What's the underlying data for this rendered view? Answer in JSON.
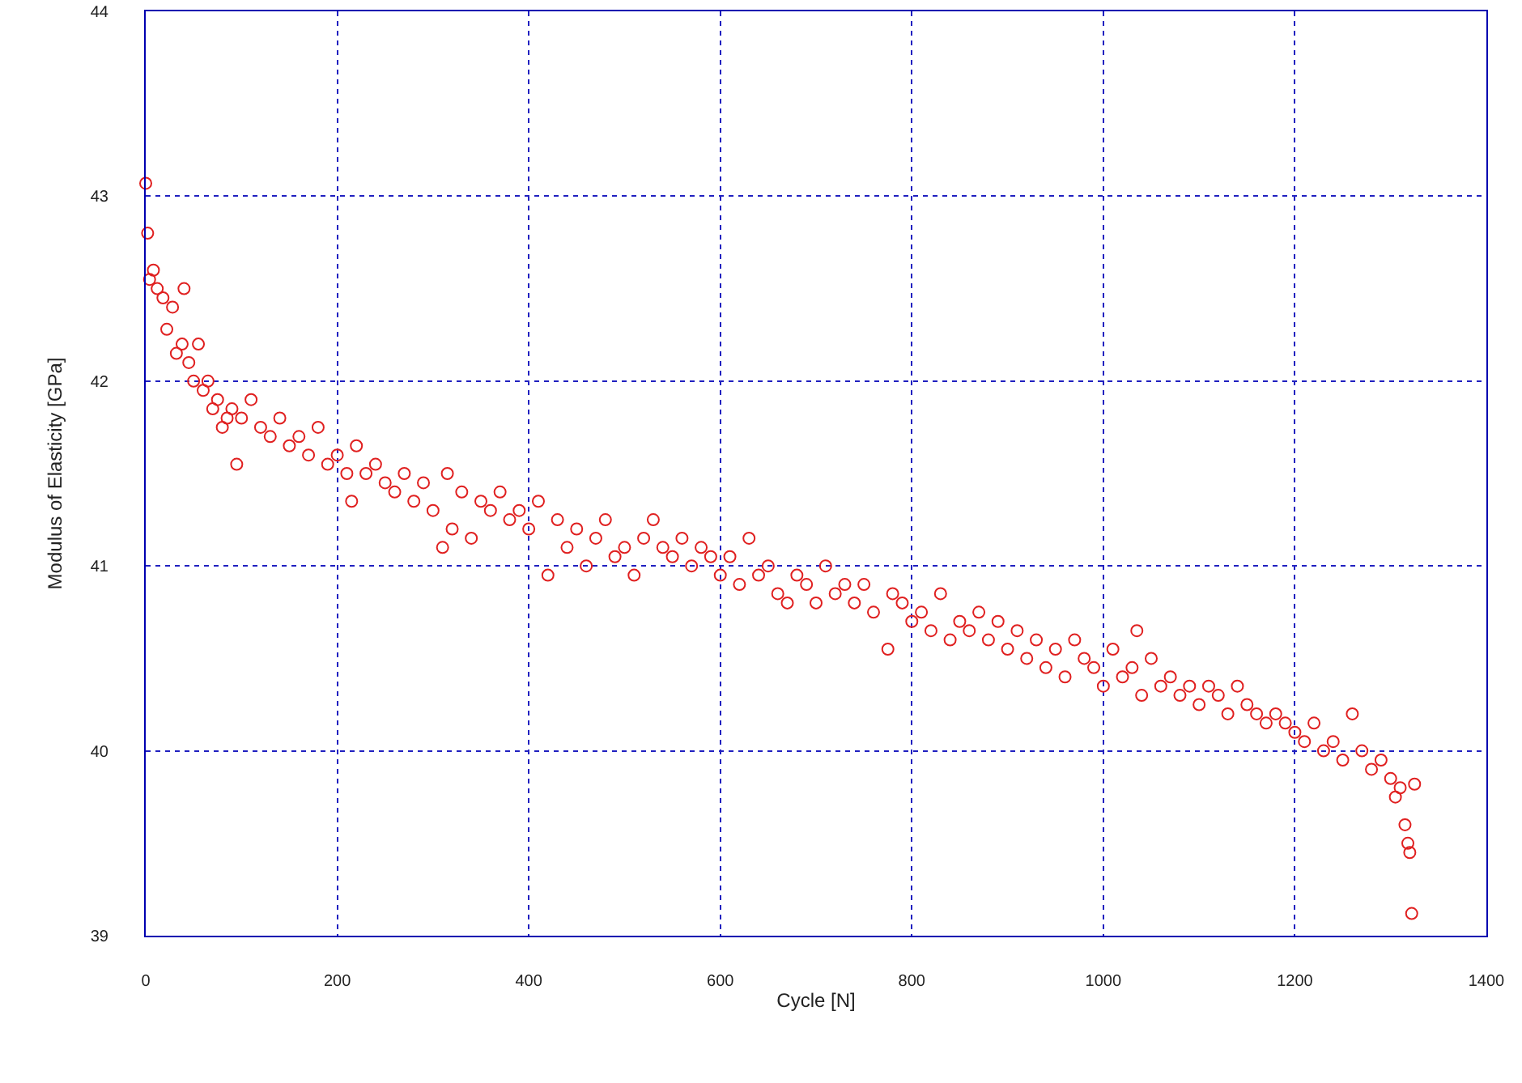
{
  "chart_data": {
    "type": "scatter",
    "xlabel": "Cycle [N]",
    "ylabel": "Modulus of Elasticity [GPa]",
    "xlim": [
      0,
      1400
    ],
    "xticks": [
      0,
      200,
      400,
      600,
      800,
      1000,
      1200,
      1400
    ],
    "ylim": [
      39,
      44
    ],
    "yticks": [
      39,
      40,
      41,
      42,
      43,
      44
    ],
    "grid": true,
    "marker": "circle",
    "series": [
      {
        "color": "#e02020",
        "x": [
          0,
          2,
          4,
          8,
          12,
          18,
          22,
          28,
          32,
          38,
          40,
          45,
          50,
          55,
          60,
          65,
          70,
          75,
          80,
          85,
          90,
          95,
          100,
          110,
          120,
          130,
          140,
          150,
          160,
          170,
          180,
          190,
          200,
          210,
          215,
          220,
          230,
          240,
          250,
          260,
          270,
          280,
          290,
          300,
          310,
          315,
          320,
          330,
          340,
          350,
          360,
          370,
          380,
          390,
          400,
          410,
          420,
          430,
          440,
          450,
          460,
          470,
          480,
          490,
          500,
          510,
          520,
          530,
          540,
          550,
          560,
          570,
          580,
          590,
          600,
          610,
          620,
          630,
          640,
          650,
          660,
          670,
          680,
          690,
          700,
          710,
          720,
          730,
          740,
          750,
          760,
          775,
          780,
          790,
          800,
          810,
          820,
          830,
          840,
          850,
          860,
          870,
          880,
          890,
          900,
          910,
          920,
          930,
          940,
          950,
          960,
          970,
          980,
          990,
          1000,
          1010,
          1020,
          1030,
          1035,
          1040,
          1050,
          1060,
          1070,
          1080,
          1090,
          1100,
          1110,
          1120,
          1130,
          1140,
          1150,
          1160,
          1170,
          1180,
          1190,
          1200,
          1210,
          1220,
          1230,
          1240,
          1250,
          1260,
          1270,
          1280,
          1290,
          1300,
          1305,
          1310,
          1315,
          1318,
          1320,
          1322,
          1325
        ],
        "values": [
          43.07,
          42.8,
          42.55,
          42.6,
          42.5,
          42.45,
          42.28,
          42.4,
          42.15,
          42.2,
          42.5,
          42.1,
          42.0,
          42.2,
          41.95,
          42.0,
          41.85,
          41.9,
          41.75,
          41.8,
          41.85,
          41.55,
          41.8,
          41.9,
          41.75,
          41.7,
          41.8,
          41.65,
          41.7,
          41.6,
          41.75,
          41.55,
          41.6,
          41.5,
          41.35,
          41.65,
          41.5,
          41.55,
          41.45,
          41.4,
          41.5,
          41.35,
          41.45,
          41.3,
          41.1,
          41.5,
          41.2,
          41.4,
          41.15,
          41.35,
          41.3,
          41.4,
          41.25,
          41.3,
          41.2,
          41.35,
          40.95,
          41.25,
          41.1,
          41.2,
          41.0,
          41.15,
          41.25,
          41.05,
          41.1,
          40.95,
          41.15,
          41.25,
          41.1,
          41.05,
          41.15,
          41.0,
          41.1,
          41.05,
          40.95,
          41.05,
          40.9,
          41.15,
          40.95,
          41.0,
          40.85,
          40.8,
          40.95,
          40.9,
          40.8,
          41.0,
          40.85,
          40.9,
          40.8,
          40.9,
          40.75,
          40.55,
          40.85,
          40.8,
          40.7,
          40.75,
          40.65,
          40.85,
          40.6,
          40.7,
          40.65,
          40.75,
          40.6,
          40.7,
          40.55,
          40.65,
          40.5,
          40.6,
          40.45,
          40.55,
          40.4,
          40.6,
          40.5,
          40.45,
          40.35,
          40.55,
          40.4,
          40.45,
          40.65,
          40.3,
          40.5,
          40.35,
          40.4,
          40.3,
          40.35,
          40.25,
          40.35,
          40.3,
          40.2,
          40.35,
          40.25,
          40.2,
          40.15,
          40.2,
          40.15,
          40.1,
          40.05,
          40.15,
          40.0,
          40.05,
          39.95,
          40.2,
          40.0,
          39.9,
          39.95,
          39.85,
          39.75,
          39.8,
          39.6,
          39.5,
          39.45,
          39.12,
          39.82
        ]
      }
    ]
  }
}
